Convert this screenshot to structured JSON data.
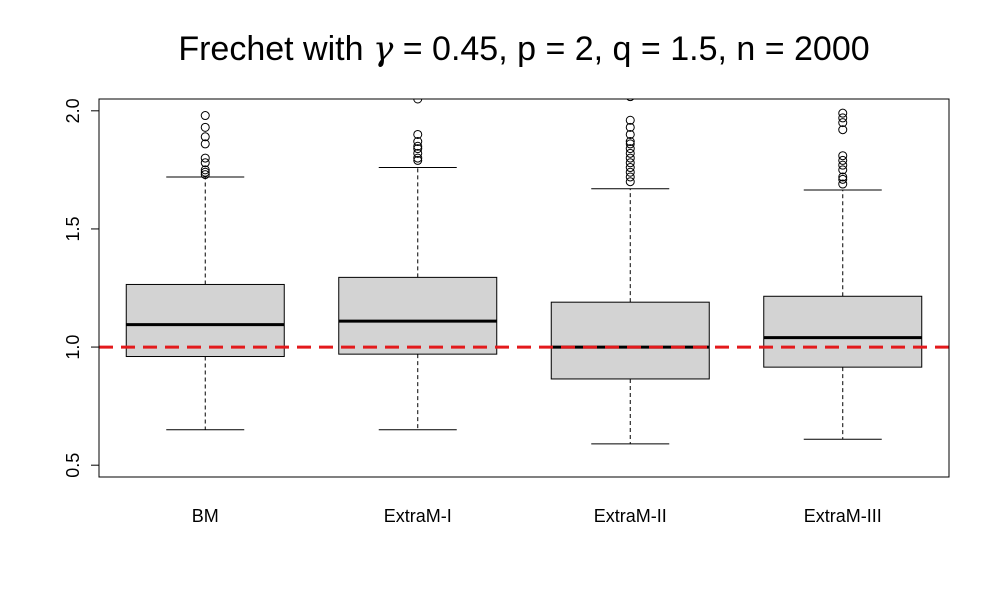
{
  "chart_data": {
    "type": "boxplot",
    "title": {
      "prefix": "Frechet with ",
      "gamma_symbol": "γ",
      "rest": " = 0.45, p = 2, q = 1.5, n = 2000"
    },
    "xlabel": "",
    "ylabel": "",
    "ylim": [
      0.45,
      2.05
    ],
    "yticks": [
      0.5,
      1.0,
      1.5,
      2.0
    ],
    "ytick_labels": [
      "0.5",
      "1.0",
      "1.5",
      "2.0"
    ],
    "reference_line": {
      "value": 1.0,
      "style": "dashed",
      "color": "#e31a1c"
    },
    "box_fill": "#d3d3d3",
    "categories": [
      "BM",
      "ExtraM-I",
      "ExtraM-II",
      "ExtraM-III"
    ],
    "boxes": [
      {
        "name": "BM",
        "whisker_low": 0.65,
        "q1": 0.96,
        "median": 1.095,
        "q3": 1.265,
        "whisker_high": 1.72,
        "outliers": [
          1.73,
          1.74,
          1.75,
          1.78,
          1.8,
          1.86,
          1.89,
          1.93,
          1.98
        ]
      },
      {
        "name": "ExtraM-I",
        "whisker_low": 0.65,
        "q1": 0.97,
        "median": 1.11,
        "q3": 1.295,
        "whisker_high": 1.76,
        "outliers": [
          1.79,
          1.8,
          1.82,
          1.84,
          1.85,
          1.87,
          1.9,
          2.05
        ]
      },
      {
        "name": "ExtraM-II",
        "whisker_low": 0.59,
        "q1": 0.865,
        "median": 1.0,
        "q3": 1.19,
        "whisker_high": 1.67,
        "outliers": [
          1.7,
          1.72,
          1.74,
          1.76,
          1.78,
          1.8,
          1.82,
          1.84,
          1.86,
          1.87,
          1.9,
          1.93,
          1.96,
          2.06
        ]
      },
      {
        "name": "ExtraM-III",
        "whisker_low": 0.61,
        "q1": 0.915,
        "median": 1.04,
        "q3": 1.215,
        "whisker_high": 1.665,
        "outliers": [
          1.69,
          1.71,
          1.72,
          1.75,
          1.77,
          1.79,
          1.81,
          1.92,
          1.95,
          1.97,
          1.99
        ]
      }
    ]
  }
}
